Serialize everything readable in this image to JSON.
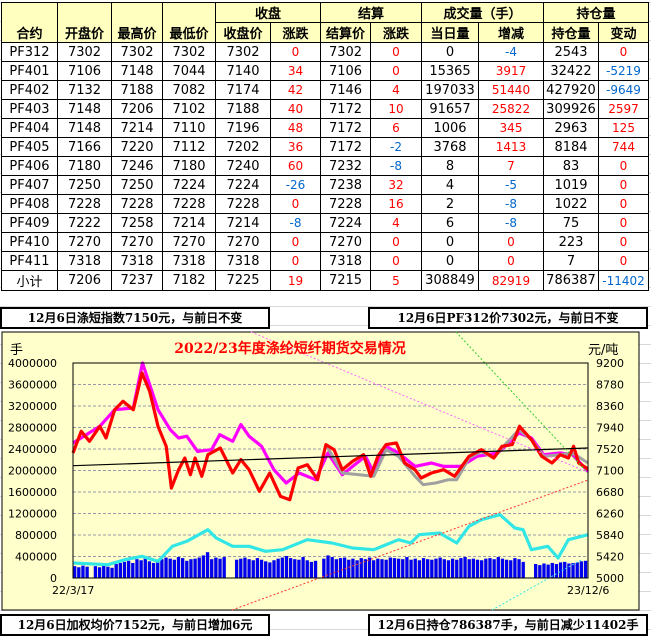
{
  "table": {
    "group_headers": [
      "收盘",
      "结算",
      "成交量（手）",
      "持仓量"
    ],
    "headers": [
      "合约",
      "开盘价",
      "最高价",
      "最低价",
      "收盘价",
      "涨跌",
      "结算价",
      "涨跌",
      "当日量",
      "增减",
      "持仓量",
      "变动"
    ],
    "rows": [
      [
        "PF312",
        "7302",
        "7302",
        "7302",
        "7302",
        "0",
        "7302",
        "0",
        "0",
        "-4",
        "2543",
        "0"
      ],
      [
        "PF401",
        "7106",
        "7148",
        "7044",
        "7140",
        "34",
        "7106",
        "0",
        "15365",
        "3917",
        "32422",
        "-5219"
      ],
      [
        "PF402",
        "7132",
        "7188",
        "7082",
        "7174",
        "42",
        "7146",
        "4",
        "197033",
        "51440",
        "427920",
        "-9649"
      ],
      [
        "PF403",
        "7148",
        "7206",
        "7102",
        "7188",
        "40",
        "7172",
        "10",
        "91657",
        "25822",
        "309926",
        "2597"
      ],
      [
        "PF404",
        "7148",
        "7214",
        "7110",
        "7196",
        "48",
        "7172",
        "6",
        "1006",
        "345",
        "2963",
        "125"
      ],
      [
        "PF405",
        "7166",
        "7220",
        "7112",
        "7202",
        "36",
        "7172",
        "-2",
        "3768",
        "1413",
        "8184",
        "744"
      ],
      [
        "PF406",
        "7180",
        "7246",
        "7180",
        "7240",
        "60",
        "7232",
        "-8",
        "8",
        "7",
        "83",
        "0"
      ],
      [
        "PF407",
        "7250",
        "7250",
        "7224",
        "7224",
        "-26",
        "7238",
        "32",
        "4",
        "-5",
        "1019",
        "0"
      ],
      [
        "PF408",
        "7228",
        "7228",
        "7228",
        "7228",
        "0",
        "7228",
        "16",
        "2",
        "-8",
        "1022",
        "0"
      ],
      [
        "PF409",
        "7222",
        "7258",
        "7214",
        "7214",
        "-8",
        "7224",
        "4",
        "6",
        "-8",
        "75",
        "0"
      ],
      [
        "PF410",
        "7270",
        "7270",
        "7270",
        "7270",
        "0",
        "7270",
        "0",
        "0",
        "0",
        "223",
        "0"
      ],
      [
        "PF411",
        "7318",
        "7318",
        "7318",
        "7318",
        "0",
        "7318",
        "0",
        "0",
        "0",
        "7",
        "0"
      ],
      [
        "小计",
        "7206",
        "7237",
        "7182",
        "7225",
        "19",
        "7215",
        "5",
        "308849",
        "82919",
        "786387",
        "-11402"
      ]
    ]
  },
  "captions": {
    "index": "12月6日涤短指数7150元，与前日不变",
    "pf312": "12月6日PF312价7302元，与前日不变",
    "avg": "12月6日加权均价7152元，与前日增加6元",
    "oi": "12月6日持仓786387手，与前日减少11402手"
  },
  "colors": {
    "up": "#FF0000",
    "down": "#0066CC",
    "header_bg": "#FFFFC0",
    "chart_bg": "#FFFFCC"
  },
  "chart_data": {
    "type": "line",
    "title": "2022/23年度涤纶短纤期货交易情况",
    "y_left_label": "手",
    "y_right_label": "元/吨",
    "y_left_range": [
      0,
      4000000
    ],
    "y_right_range": [
      5000,
      9200
    ],
    "y_left_ticks": [
      "4000000",
      "3600000",
      "3200000",
      "2800000",
      "2400000",
      "2000000",
      "1600000",
      "1200000",
      "800000",
      "400000",
      "0"
    ],
    "y_right_ticks": [
      "9200",
      "8780",
      "8360",
      "7940",
      "7520",
      "7100",
      "6680",
      "6260",
      "5840",
      "5420",
      "5000"
    ],
    "x_labels": [
      "22/3/17",
      "23/12/6"
    ],
    "grid": true,
    "series": [
      {
        "axis": "right",
        "color": "#FF00FF",
        "values": [
          [
            0,
            7637
          ],
          [
            0.052,
            7963
          ],
          [
            0.081,
            8288
          ],
          [
            0.117,
            8320
          ],
          [
            0.135,
            9200
          ],
          [
            0.165,
            8288
          ],
          [
            0.189,
            7898
          ],
          [
            0.205,
            7735
          ],
          [
            0.221,
            7770
          ],
          [
            0.242,
            7474
          ],
          [
            0.269,
            7507
          ],
          [
            0.285,
            7800
          ],
          [
            0.31,
            7670
          ],
          [
            0.326,
            7996
          ],
          [
            0.342,
            7770
          ],
          [
            0.366,
            7572
          ],
          [
            0.39,
            7116
          ],
          [
            0.414,
            6856
          ],
          [
            0.439,
            7051
          ],
          [
            0.471,
            6921
          ],
          [
            0.495,
            7442
          ],
          [
            0.523,
            7018
          ],
          [
            0.543,
            7180
          ],
          [
            0.568,
            7377
          ],
          [
            0.584,
            7051
          ],
          [
            0.608,
            7572
          ],
          [
            0.632,
            7442
          ],
          [
            0.664,
            7180
          ],
          [
            0.696,
            7246
          ],
          [
            0.72,
            7180
          ],
          [
            0.753,
            7180
          ],
          [
            0.785,
            7377
          ],
          [
            0.825,
            7442
          ],
          [
            0.866,
            7832
          ],
          [
            0.89,
            7735
          ],
          [
            0.914,
            7409
          ],
          [
            0.946,
            7442
          ],
          [
            0.97,
            7409
          ],
          [
            1,
            7083
          ]
        ]
      },
      {
        "axis": "right",
        "color": "#A0A0A0",
        "values": [
          [
            0.491,
            7605
          ],
          [
            0.523,
            7051
          ],
          [
            0.584,
            6986
          ],
          [
            0.608,
            7507
          ],
          [
            0.632,
            7377
          ],
          [
            0.664,
            6986
          ],
          [
            0.68,
            6823
          ],
          [
            0.704,
            6856
          ],
          [
            0.729,
            6921
          ],
          [
            0.745,
            6921
          ],
          [
            0.769,
            7344
          ],
          [
            0.793,
            7474
          ],
          [
            0.817,
            7344
          ],
          [
            0.833,
            7540
          ],
          [
            0.866,
            7898
          ],
          [
            0.89,
            7702
          ],
          [
            0.914,
            7377
          ],
          [
            0.946,
            7409
          ],
          [
            0.97,
            7442
          ],
          [
            1,
            7246
          ]
        ]
      },
      {
        "axis": "right",
        "color": "#FF0000",
        "values": [
          [
            0,
            7442
          ],
          [
            0.016,
            7865
          ],
          [
            0.032,
            7670
          ],
          [
            0.052,
            7963
          ],
          [
            0.064,
            7735
          ],
          [
            0.081,
            8288
          ],
          [
            0.097,
            8451
          ],
          [
            0.117,
            8288
          ],
          [
            0.134,
            9005
          ],
          [
            0.149,
            8646
          ],
          [
            0.165,
            7963
          ],
          [
            0.181,
            7572
          ],
          [
            0.191,
            6758
          ],
          [
            0.205,
            7116
          ],
          [
            0.217,
            7344
          ],
          [
            0.228,
            7018
          ],
          [
            0.237,
            7344
          ],
          [
            0.25,
            6986
          ],
          [
            0.262,
            7409
          ],
          [
            0.286,
            7540
          ],
          [
            0.31,
            7051
          ],
          [
            0.326,
            7312
          ],
          [
            0.342,
            7116
          ],
          [
            0.362,
            6693
          ],
          [
            0.382,
            7051
          ],
          [
            0.403,
            6595
          ],
          [
            0.421,
            6530
          ],
          [
            0.437,
            7149
          ],
          [
            0.455,
            7214
          ],
          [
            0.475,
            6921
          ],
          [
            0.491,
            7605
          ],
          [
            0.507,
            7507
          ],
          [
            0.523,
            7116
          ],
          [
            0.543,
            7279
          ],
          [
            0.564,
            7409
          ],
          [
            0.578,
            6986
          ],
          [
            0.592,
            7377
          ],
          [
            0.608,
            7605
          ],
          [
            0.628,
            7637
          ],
          [
            0.644,
            7246
          ],
          [
            0.664,
            7116
          ],
          [
            0.676,
            6953
          ],
          [
            0.696,
            7051
          ],
          [
            0.72,
            7116
          ],
          [
            0.741,
            6986
          ],
          [
            0.769,
            7377
          ],
          [
            0.793,
            7507
          ],
          [
            0.817,
            7344
          ],
          [
            0.833,
            7572
          ],
          [
            0.853,
            7605
          ],
          [
            0.867,
            7963
          ],
          [
            0.89,
            7702
          ],
          [
            0.91,
            7377
          ],
          [
            0.93,
            7246
          ],
          [
            0.946,
            7409
          ],
          [
            0.962,
            7344
          ],
          [
            0.972,
            7572
          ],
          [
            0.982,
            7246
          ],
          [
            1,
            7129
          ]
        ]
      },
      {
        "axis": "right",
        "color": "#000000",
        "values": [
          [
            0,
            7194
          ],
          [
            1,
            7540
          ]
        ]
      },
      {
        "axis": "left",
        "color": "#33E6E6",
        "values": [
          [
            0,
            279000
          ],
          [
            0.068,
            248000
          ],
          [
            0.101,
            341000
          ],
          [
            0.134,
            403000
          ],
          [
            0.165,
            310000
          ],
          [
            0.193,
            589000
          ],
          [
            0.221,
            682000
          ],
          [
            0.262,
            899000
          ],
          [
            0.278,
            744000
          ],
          [
            0.31,
            589000
          ],
          [
            0.342,
            589000
          ],
          [
            0.374,
            496000
          ],
          [
            0.407,
            527000
          ],
          [
            0.455,
            713000
          ],
          [
            0.503,
            651000
          ],
          [
            0.543,
            558000
          ],
          [
            0.584,
            527000
          ],
          [
            0.632,
            713000
          ],
          [
            0.656,
            651000
          ],
          [
            0.672,
            806000
          ],
          [
            0.712,
            837000
          ],
          [
            0.745,
            651000
          ],
          [
            0.769,
            961000
          ],
          [
            0.793,
            1085000
          ],
          [
            0.829,
            1178000
          ],
          [
            0.858,
            930000
          ],
          [
            0.874,
            899000
          ],
          [
            0.89,
            527000
          ],
          [
            0.922,
            589000
          ],
          [
            0.942,
            372000
          ],
          [
            0.962,
            713000
          ],
          [
            1,
            806000
          ]
        ]
      }
    ],
    "volume": {
      "axis": "left",
      "color": "#0000EE",
      "values": [
        220000,
        200000,
        230000,
        210000,
        0,
        220000,
        200000,
        230000,
        210000,
        190000,
        260000,
        280000,
        300000,
        320000,
        280000,
        350000,
        330000,
        360000,
        310000,
        280000,
        330000,
        350000,
        380000,
        360000,
        340000,
        390000,
        370000,
        320000,
        350000,
        360000,
        380000,
        420000,
        480000,
        350000,
        380000,
        360000,
        390000,
        0,
        0,
        340000,
        360000,
        380000,
        350000,
        330000,
        370000,
        340000,
        310000,
        290000,
        330000,
        360000,
        380000,
        410000,
        370000,
        350000,
        340000,
        390000,
        330000,
        300000,
        320000,
        0,
        360000,
        420000,
        390000,
        350000,
        370000,
        380000,
        340000,
        360000,
        330000,
        370000,
        350000,
        380000,
        330000,
        360000,
        350000,
        340000,
        380000,
        370000,
        360000,
        350000,
        390000,
        340000,
        360000,
        330000,
        370000,
        350000,
        340000,
        360000,
        380000,
        350000,
        330000,
        360000,
        340000,
        370000,
        390000,
        350000,
        360000,
        340000,
        330000,
        360000,
        370000,
        350000,
        390000,
        360000,
        340000,
        330000,
        370000,
        350000,
        300000,
        0,
        0,
        260000,
        240000,
        270000,
        250000,
        280000,
        260000,
        290000,
        300000,
        270000,
        280000,
        290000,
        310000,
        320000
      ]
    }
  }
}
